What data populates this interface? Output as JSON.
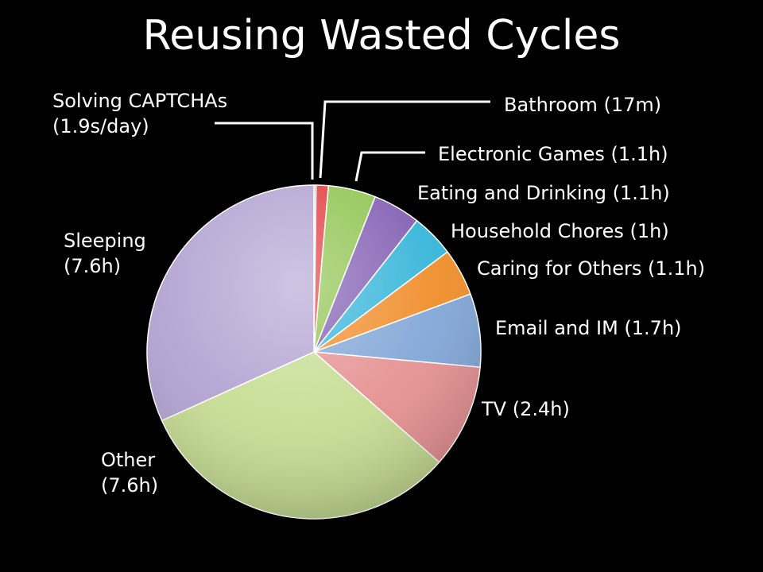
{
  "slide": {
    "title": "Reusing Wasted Cycles"
  },
  "chart_data": {
    "type": "pie",
    "title": "Reusing Wasted Cycles",
    "unit": "hours per day",
    "slices": [
      {
        "label": "Solving CAPTCHAs",
        "value_text": "(1.9s/day)",
        "value": 0.000528,
        "color": "#b8b8b8"
      },
      {
        "label": "Bathroom",
        "value_text": "(17m)",
        "value": 0.283,
        "color": "#e0383b"
      },
      {
        "label": "Electronic Games",
        "value_text": "(1.1h)",
        "value": 1.1,
        "color": "#8cc24a"
      },
      {
        "label": "Eating and Drinking",
        "value_text": "(1.1h)",
        "value": 1.1,
        "color": "#7e5ab0"
      },
      {
        "label": "Household Chores",
        "value_text": "(1h)",
        "value": 1.0,
        "color": "#2fb3d8"
      },
      {
        "label": "Caring for Others",
        "value_text": "(1.1h)",
        "value": 1.1,
        "color": "#f08a24"
      },
      {
        "label": "Email and IM",
        "value_text": "(1.7h)",
        "value": 1.7,
        "color": "#7ea4d6"
      },
      {
        "label": "TV",
        "value_text": "(2.4h)",
        "value": 2.4,
        "color": "#e58e8e"
      },
      {
        "label": "Other",
        "value_text": "(7.6h)",
        "value": 7.6,
        "color": "#c4dc90"
      },
      {
        "label": "Sleeping",
        "value_text": "(7.6h)",
        "value": 7.6,
        "color": "#b0a0d0"
      }
    ]
  },
  "labels": {
    "captcha_line1": "Solving CAPTCHAs",
    "captcha_line2": "(1.9s/day)",
    "bathroom": "Bathroom (17m)",
    "games": "Electronic Games (1.1h)",
    "eating": "Eating and Drinking (1.1h)",
    "chores": "Household Chores (1h)",
    "caring": "Caring for Others (1.1h)",
    "email": "Email and IM (1.7h)",
    "tv": "TV (2.4h)",
    "other_line1": "Other",
    "other_line2": "(7.6h)",
    "sleeping_line1": "Sleeping",
    "sleeping_line2": "(7.6h)"
  }
}
